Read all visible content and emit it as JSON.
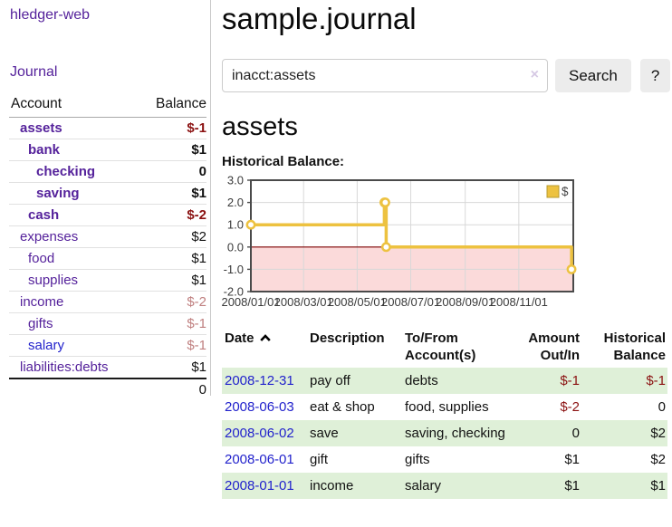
{
  "colors": {
    "purple": "#55229b",
    "blue": "#2222cc",
    "neg": "#8b1212",
    "negfade": "#c08080",
    "green": "#dff0d8",
    "btnbg": "#ececec",
    "clearx": "#d6c9e4"
  },
  "app": {
    "title": "hledger-web"
  },
  "sidebar": {
    "journal_label": "Journal",
    "accounts": {
      "header_account": "Account",
      "header_balance": "Balance",
      "rows": [
        {
          "name": "assets",
          "depth": 1,
          "bold": true,
          "link_color": "purple",
          "balance": "$-1",
          "balance_class": "neg-strong"
        },
        {
          "name": "bank",
          "depth": 2,
          "bold": true,
          "link_color": "purple",
          "balance": "$1",
          "balance_class": "pos-strong"
        },
        {
          "name": "checking",
          "depth": 3,
          "bold": true,
          "link_color": "purple",
          "balance": "0",
          "balance_class": "pos-strong"
        },
        {
          "name": "saving",
          "depth": 3,
          "bold": true,
          "link_color": "purple",
          "balance": "$1",
          "balance_class": "pos-strong"
        },
        {
          "name": "cash",
          "depth": 2,
          "bold": true,
          "link_color": "purple",
          "balance": "$-2",
          "balance_class": "neg-strong"
        },
        {
          "name": "expenses",
          "depth": 1,
          "bold": false,
          "link_color": "purple",
          "balance": "$2",
          "balance_class": "pos"
        },
        {
          "name": "food",
          "depth": 2,
          "bold": false,
          "link_color": "purple",
          "balance": "$1",
          "balance_class": "pos"
        },
        {
          "name": "supplies",
          "depth": 2,
          "bold": false,
          "link_color": "purple",
          "balance": "$1",
          "balance_class": "pos"
        },
        {
          "name": "income",
          "depth": 1,
          "bold": false,
          "link_color": "purple",
          "balance": "$-2",
          "balance_class": "neg-faded"
        },
        {
          "name": "gifts",
          "depth": 2,
          "bold": false,
          "link_color": "purple",
          "balance": "$-1",
          "balance_class": "neg-faded"
        },
        {
          "name": "salary",
          "depth": 2,
          "bold": false,
          "link_color": "blue",
          "balance": "$-1",
          "balance_class": "neg-faded"
        },
        {
          "name": "liabilities:debts",
          "depth": 1,
          "bold": false,
          "link_color": "purple",
          "balance": "$1",
          "balance_class": "pos"
        }
      ],
      "total": "0"
    }
  },
  "main": {
    "title": "sample.journal",
    "search": {
      "value": "inacct:assets",
      "clear_icon": "×",
      "button_label": "Search",
      "help_label": "?"
    },
    "account_heading": "assets",
    "chart_label": "Historical Balance:"
  },
  "chart_data": {
    "type": "line",
    "title": "Historical Balance",
    "step": true,
    "series": [
      {
        "name": "$",
        "color": "#edc240",
        "points": [
          [
            "2008-01-01",
            1
          ],
          [
            "2008-06-01",
            2
          ],
          [
            "2008-06-02",
            2
          ],
          [
            "2008-06-03",
            0
          ],
          [
            "2008-12-31",
            -1
          ]
        ]
      }
    ],
    "x_ticks": [
      "2008/01/01",
      "2008/03/01",
      "2008/05/01",
      "2008/07/01",
      "2008/09/01",
      "2008/11/01"
    ],
    "y_ticks": [
      "3.0",
      "2.0",
      "1.0",
      "0.0",
      "-1.0",
      "-2.0"
    ],
    "ylim": [
      -2,
      3
    ],
    "xlim_days": [
      0,
      367
    ],
    "grid": true,
    "negative_region_color": "#fbdada",
    "zero_line_color": "#7d0000",
    "grid_color": "#d8d8d8",
    "border_color": "#4a4a4a",
    "legend": {
      "label": "$",
      "position": "top-right"
    }
  },
  "register": {
    "headers": {
      "date": "Date",
      "description": "Description",
      "accounts": "To/From Account(s)",
      "amount": "Amount Out/In",
      "balance": "Historical Balance"
    },
    "rows": [
      {
        "date": "2008-12-31",
        "description": "pay off",
        "accounts": "debts",
        "amount": "$-1",
        "amount_negative": true,
        "balance": "$-1",
        "balance_negative": true
      },
      {
        "date": "2008-06-03",
        "description": "eat & shop",
        "accounts": "food, supplies",
        "amount": "$-2",
        "amount_negative": true,
        "balance": "0",
        "balance_negative": false
      },
      {
        "date": "2008-06-02",
        "description": "save",
        "accounts": "saving, checking",
        "amount": "0",
        "amount_negative": false,
        "balance": "$2",
        "balance_negative": false
      },
      {
        "date": "2008-06-01",
        "description": "gift",
        "accounts": "gifts",
        "amount": "$1",
        "amount_negative": false,
        "balance": "$2",
        "balance_negative": false
      },
      {
        "date": "2008-01-01",
        "description": "income",
        "accounts": "salary",
        "amount": "$1",
        "amount_negative": false,
        "balance": "$1",
        "balance_negative": false
      }
    ]
  }
}
